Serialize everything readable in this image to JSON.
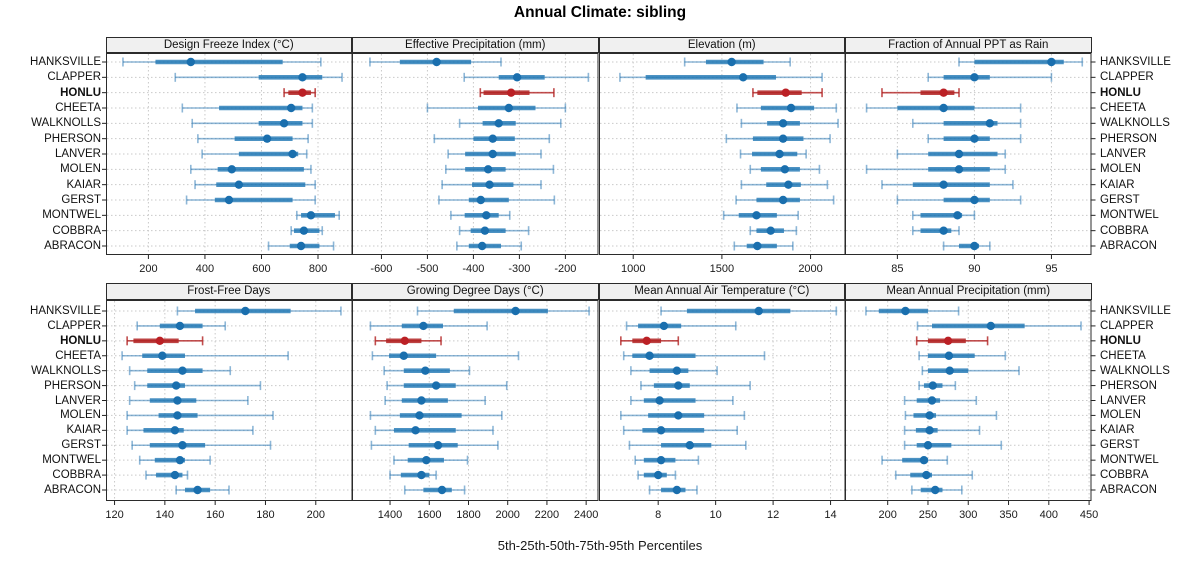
{
  "title": "Annual Climate: sibling",
  "footer": "5th-25th-50th-75th-95th Percentiles",
  "sites": [
    "HANKSVILLE",
    "CLAPPER",
    "HONLU",
    "CHEETA",
    "WALKNOLLS",
    "PHERSON",
    "LANVER",
    "MOLEN",
    "KAIAR",
    "GERST",
    "MONTWEL",
    "COBBRA",
    "ABRACON"
  ],
  "highlight_site": "HONLU",
  "colors": {
    "blue_dot": "#1a6fae",
    "blue_box": "rgba(31,119,180,0.80)",
    "blue_whisker": "rgba(49,124,183,0.55)",
    "red_dot": "#bb2025",
    "red_box": "rgba(178,34,34,0.85)",
    "red_whisker": "rgba(178,34,34,0.80)",
    "grid": "#c9c9c9",
    "panel_border": "#2b2b2b",
    "strip_bg": "#f0f0f0",
    "tick": "#222222"
  },
  "chart_data": {
    "type": "dotplot-percentiles",
    "title": "Annual Climate: sibling",
    "xlabel": "5th-25th-50th-75th-95th Percentiles",
    "percentile_labels": [
      "5th",
      "25th",
      "50th",
      "75th",
      "95th"
    ],
    "layout": "2 rows x 4 columns of panels, 13 sites per panel, free x scales",
    "categories": [
      "HANKSVILLE",
      "CLAPPER",
      "HONLU",
      "CHEETA",
      "WALKNOLLS",
      "PHERSON",
      "LANVER",
      "MOLEN",
      "KAIAR",
      "GERST",
      "MONTWEL",
      "COBBRA",
      "ABRACON"
    ],
    "panels": [
      {
        "title": "Design Freeze Index (°C)",
        "xlim": [
          50,
          922
        ],
        "ticks": [
          200,
          400,
          600,
          800
        ],
        "values": [
          [
            110,
            225,
            350,
            675,
            810
          ],
          [
            295,
            590,
            745,
            815,
            885
          ],
          [
            680,
            695,
            745,
            775,
            790
          ],
          [
            320,
            450,
            705,
            745,
            780
          ],
          [
            355,
            590,
            680,
            745,
            780
          ],
          [
            375,
            505,
            620,
            710,
            765
          ],
          [
            390,
            520,
            710,
            730,
            760
          ],
          [
            350,
            445,
            495,
            750,
            775
          ],
          [
            365,
            440,
            520,
            755,
            790
          ],
          [
            335,
            435,
            485,
            710,
            790
          ],
          [
            725,
            740,
            775,
            860,
            875
          ],
          [
            705,
            715,
            750,
            805,
            815
          ],
          [
            625,
            700,
            740,
            805,
            855
          ]
        ]
      },
      {
        "title": "Effective Precipitation (mm)",
        "xlim": [
          -664,
          -128
        ],
        "ticks": [
          -600,
          -500,
          -400,
          -300,
          -200
        ],
        "values": [
          [
            -625,
            -560,
            -480,
            -405,
            -340
          ],
          [
            -420,
            -345,
            -305,
            -245,
            -150
          ],
          [
            -385,
            -378,
            -318,
            -278,
            -225
          ],
          [
            -500,
            -390,
            -323,
            -265,
            -200
          ],
          [
            -430,
            -380,
            -345,
            -308,
            -210
          ],
          [
            -485,
            -400,
            -358,
            -310,
            -235
          ],
          [
            -455,
            -418,
            -358,
            -308,
            -253
          ],
          [
            -460,
            -418,
            -368,
            -330,
            -226
          ],
          [
            -468,
            -403,
            -365,
            -313,
            -253
          ],
          [
            -475,
            -410,
            -384,
            -323,
            -224
          ],
          [
            -449,
            -419,
            -372,
            -345,
            -321
          ],
          [
            -430,
            -406,
            -375,
            -330,
            -280
          ],
          [
            -436,
            -410,
            -381,
            -340,
            -296
          ]
        ]
      },
      {
        "title": "Elevation (m)",
        "xlim": [
          807,
          2197
        ],
        "ticks": [
          1000,
          1500,
          2000
        ],
        "values": [
          [
            1290,
            1410,
            1555,
            1735,
            1885
          ],
          [
            925,
            1070,
            1620,
            1805,
            2065
          ],
          [
            1675,
            1700,
            1860,
            1950,
            2065
          ],
          [
            1585,
            1720,
            1890,
            2020,
            2145
          ],
          [
            1610,
            1755,
            1845,
            1940,
            2155
          ],
          [
            1525,
            1675,
            1845,
            1960,
            2110
          ],
          [
            1605,
            1670,
            1825,
            1925,
            1975
          ],
          [
            1660,
            1720,
            1855,
            1940,
            2050
          ],
          [
            1610,
            1750,
            1875,
            1945,
            2095
          ],
          [
            1580,
            1695,
            1845,
            1940,
            2130
          ],
          [
            1510,
            1595,
            1695,
            1810,
            1930
          ],
          [
            1660,
            1695,
            1775,
            1850,
            1920
          ],
          [
            1570,
            1640,
            1700,
            1810,
            1900
          ]
        ]
      },
      {
        "title": "Fraction of Annual PPT as Rain",
        "xlim": [
          81.6,
          97.6
        ],
        "ticks": [
          85,
          90,
          95
        ],
        "values": [
          [
            89,
            90,
            95,
            95.8,
            97
          ],
          [
            87,
            88,
            90,
            91,
            95
          ],
          [
            84,
            86.5,
            88,
            88.7,
            89
          ],
          [
            83,
            85,
            88,
            90,
            93
          ],
          [
            86,
            88,
            91,
            91.5,
            93
          ],
          [
            87,
            88,
            90,
            91,
            93
          ],
          [
            85,
            87,
            89,
            91.5,
            92
          ],
          [
            83,
            87,
            89,
            91,
            92
          ],
          [
            84,
            86,
            88,
            91,
            92.5
          ],
          [
            85,
            88,
            90,
            91,
            93
          ],
          [
            86,
            86.5,
            88.9,
            89.2,
            90
          ],
          [
            86,
            86.5,
            88,
            88.5,
            89
          ],
          [
            88,
            89,
            90,
            90.3,
            91
          ]
        ]
      },
      {
        "title": "Frost-Free Days",
        "xlim": [
          116.6,
          214.6
        ],
        "ticks": [
          120,
          140,
          160,
          180,
          200
        ],
        "values": [
          [
            145,
            152,
            172,
            190,
            210
          ],
          [
            129,
            138,
            146,
            155,
            164
          ],
          [
            125,
            127.5,
            138,
            145.5,
            155
          ],
          [
            123,
            131,
            139,
            148,
            189
          ],
          [
            126,
            133,
            147,
            155,
            166
          ],
          [
            128,
            133,
            144.5,
            148,
            178
          ],
          [
            126,
            134,
            145,
            152.5,
            173
          ],
          [
            125,
            137.5,
            145,
            153,
            183
          ],
          [
            125,
            131.5,
            144,
            147.5,
            175
          ],
          [
            127,
            134,
            147,
            156,
            182
          ],
          [
            130,
            136,
            146,
            148,
            158
          ],
          [
            132.5,
            136.5,
            144,
            147,
            149
          ],
          [
            144.5,
            148,
            153,
            158,
            165.5
          ]
        ]
      },
      {
        "title": "Growing Degree Days (°C)",
        "xlim": [
          1206,
          2463
        ],
        "ticks": [
          1400,
          1600,
          1800,
          2000,
          2200,
          2400
        ],
        "values": [
          [
            1540,
            1725,
            2040,
            2205,
            2415
          ],
          [
            1300,
            1460,
            1570,
            1670,
            1895
          ],
          [
            1325,
            1380,
            1475,
            1560,
            1660
          ],
          [
            1310,
            1395,
            1470,
            1635,
            2055
          ],
          [
            1370,
            1470,
            1580,
            1705,
            1805
          ],
          [
            1385,
            1470,
            1635,
            1735,
            1995
          ],
          [
            1375,
            1460,
            1560,
            1695,
            1885
          ],
          [
            1300,
            1450,
            1550,
            1765,
            1970
          ],
          [
            1325,
            1420,
            1530,
            1735,
            1925
          ],
          [
            1305,
            1495,
            1645,
            1745,
            1950
          ],
          [
            1420,
            1490,
            1585,
            1675,
            1795
          ],
          [
            1400,
            1455,
            1560,
            1600,
            1635
          ],
          [
            1475,
            1570,
            1665,
            1715,
            1780
          ]
        ]
      },
      {
        "title": "Mean Annual Air Temperature (°C)",
        "xlim": [
          5.94,
          14.52
        ],
        "ticks": [
          8,
          10,
          12,
          14
        ],
        "values": [
          [
            8.1,
            9.0,
            11.5,
            12.6,
            14.2
          ],
          [
            6.9,
            7.3,
            8.2,
            8.8,
            10.7
          ],
          [
            6.7,
            7.1,
            7.6,
            8.1,
            8.7
          ],
          [
            6.8,
            7.1,
            7.7,
            9.3,
            11.7
          ],
          [
            7.05,
            7.7,
            8.65,
            9.05,
            10.05
          ],
          [
            7.4,
            7.85,
            8.7,
            9.1,
            11.2
          ],
          [
            7.05,
            7.5,
            8.05,
            9.3,
            10.6
          ],
          [
            6.7,
            7.65,
            8.7,
            9.6,
            11.0
          ],
          [
            6.8,
            7.45,
            8.1,
            9.6,
            10.75
          ],
          [
            7.0,
            8.1,
            9.1,
            9.85,
            11.05
          ],
          [
            7.2,
            7.5,
            8.1,
            8.6,
            9.4
          ],
          [
            7.3,
            7.5,
            8.0,
            8.3,
            8.6
          ],
          [
            7.7,
            8.1,
            8.65,
            8.95,
            9.35
          ]
        ]
      },
      {
        "title": "Mean Annual Precipitation (mm)",
        "xlim": [
          147,
          453
        ],
        "ticks": [
          200,
          250,
          300,
          350,
          400,
          450
        ],
        "values": [
          [
            173,
            189,
            222,
            250,
            288
          ],
          [
            237,
            255,
            328,
            370,
            440
          ],
          [
            236,
            250,
            275,
            297,
            324
          ],
          [
            239,
            250,
            276,
            308,
            346
          ],
          [
            243,
            250,
            277,
            300,
            363
          ],
          [
            239,
            245,
            256,
            268,
            284
          ],
          [
            221,
            236,
            255,
            265,
            310
          ],
          [
            222,
            232,
            252,
            260,
            335
          ],
          [
            221,
            235,
            252,
            262,
            314
          ],
          [
            221,
            236,
            250,
            279,
            341
          ],
          [
            193,
            218,
            245,
            250,
            274
          ],
          [
            210,
            228,
            248,
            255,
            305
          ],
          [
            230,
            241,
            259,
            268,
            292
          ]
        ]
      }
    ]
  }
}
